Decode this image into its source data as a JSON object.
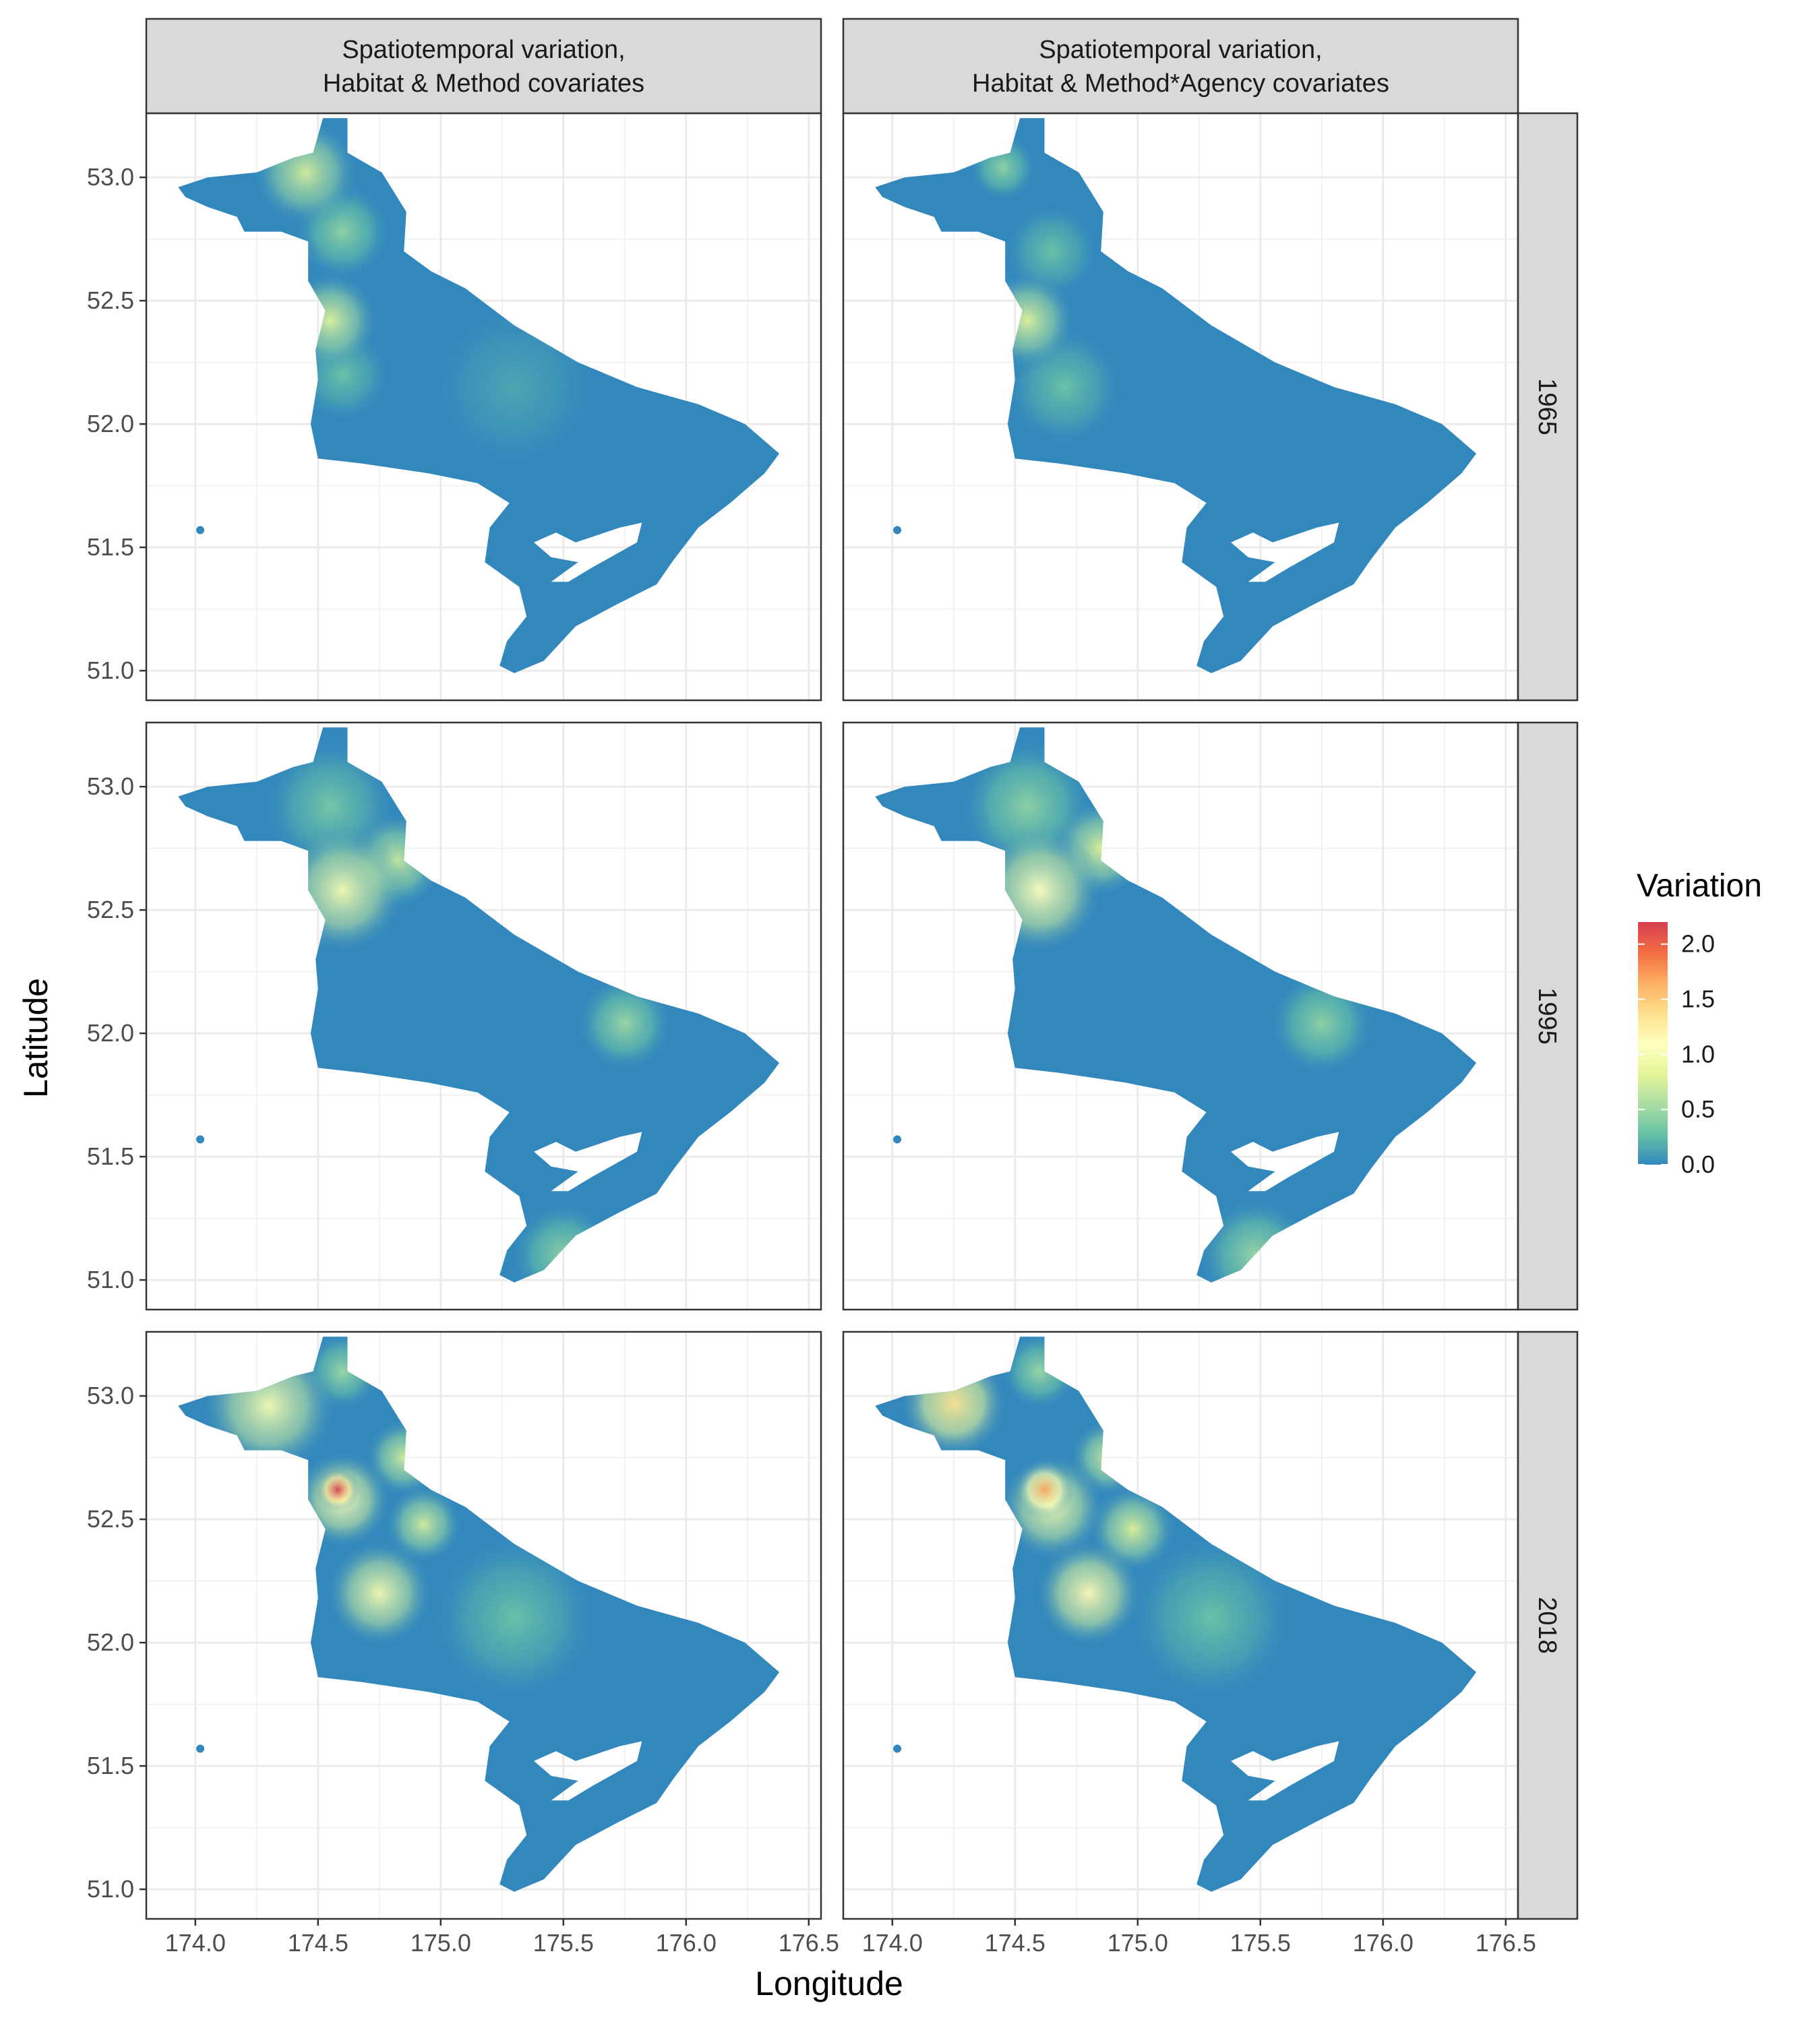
{
  "chart_data": {
    "type": "heatmap",
    "description_kind": "faceted spatial point map",
    "columns": [
      {
        "label_line1": "Spatiotemporal variation,",
        "label_line2": "Habitat & Method covariates"
      },
      {
        "label_line1": "Spatiotemporal variation,",
        "label_line2": "Habitat & Method*Agency covariates"
      }
    ],
    "rows": [
      "1965",
      "1995",
      "2018"
    ],
    "xlabel": "Longitude",
    "ylabel": "Latitude",
    "xlim": [
      173.8,
      176.55
    ],
    "ylim": [
      50.88,
      53.26
    ],
    "x_ticks": [
      174.0,
      174.5,
      175.0,
      175.5,
      176.0,
      176.5
    ],
    "x_tick_labels": [
      "174.0",
      "174.5",
      "175.0",
      "175.5",
      "176.0",
      "176.5"
    ],
    "y_ticks": [
      51.0,
      51.5,
      52.0,
      52.5,
      53.0
    ],
    "y_tick_labels": [
      "51.0",
      "51.5",
      "52.0",
      "52.5",
      "53.0"
    ],
    "grid": true,
    "legend": {
      "title": "Variation",
      "placement": "right",
      "range": [
        0,
        2.2
      ],
      "ticks": [
        0.0,
        0.5,
        1.0,
        1.5,
        2.0
      ],
      "tick_labels": [
        "0.0",
        "0.5",
        "1.0",
        "1.5",
        "2.0"
      ],
      "colors": [
        "#3288bd",
        "#66c2a5",
        "#abdda4",
        "#e6f598",
        "#ffffbf",
        "#fee08b",
        "#fdae61",
        "#f46d43",
        "#d53e4f"
      ]
    },
    "region_outline": [
      [
        173.93,
        52.96
      ],
      [
        174.05,
        53.0
      ],
      [
        174.25,
        53.02
      ],
      [
        174.4,
        53.08
      ],
      [
        174.48,
        53.1
      ],
      [
        174.52,
        53.24
      ],
      [
        174.62,
        53.24
      ],
      [
        174.62,
        53.1
      ],
      [
        174.76,
        53.02
      ],
      [
        174.86,
        52.86
      ],
      [
        174.85,
        52.7
      ],
      [
        174.96,
        52.62
      ],
      [
        175.1,
        52.55
      ],
      [
        175.3,
        52.4
      ],
      [
        175.56,
        52.25
      ],
      [
        175.8,
        52.15
      ],
      [
        176.05,
        52.08
      ],
      [
        176.24,
        52.0
      ],
      [
        176.38,
        51.88
      ],
      [
        176.32,
        51.8
      ],
      [
        176.18,
        51.68
      ],
      [
        176.05,
        51.58
      ],
      [
        175.95,
        51.45
      ],
      [
        175.88,
        51.35
      ],
      [
        175.72,
        51.27
      ],
      [
        175.55,
        51.18
      ],
      [
        175.42,
        51.04
      ],
      [
        175.3,
        50.99
      ],
      [
        175.24,
        51.02
      ],
      [
        175.27,
        51.12
      ],
      [
        175.35,
        51.22
      ],
      [
        175.32,
        51.34
      ],
      [
        175.18,
        51.44
      ],
      [
        175.2,
        51.58
      ],
      [
        175.28,
        51.68
      ],
      [
        175.15,
        51.76
      ],
      [
        174.95,
        51.8
      ],
      [
        174.68,
        51.84
      ],
      [
        174.5,
        51.86
      ],
      [
        174.47,
        52.0
      ],
      [
        174.5,
        52.18
      ],
      [
        174.49,
        52.3
      ],
      [
        174.53,
        52.46
      ],
      [
        174.46,
        52.58
      ],
      [
        174.46,
        52.74
      ],
      [
        174.35,
        52.78
      ],
      [
        174.2,
        52.78
      ],
      [
        174.17,
        52.84
      ],
      [
        174.05,
        52.88
      ],
      [
        173.96,
        52.92
      ]
    ],
    "hole_outline": [
      [
        175.47,
        51.56
      ],
      [
        175.55,
        51.52
      ],
      [
        175.73,
        51.58
      ],
      [
        175.82,
        51.6
      ],
      [
        175.8,
        51.52
      ],
      [
        175.62,
        51.42
      ],
      [
        175.52,
        51.36
      ],
      [
        175.45,
        51.36
      ],
      [
        175.56,
        51.44
      ],
      [
        175.45,
        51.46
      ],
      [
        175.38,
        51.52
      ]
    ],
    "isolated_point": [
      174.02,
      51.57
    ],
    "panels": [
      {
        "row": "1965",
        "col": 0,
        "hotspots": [
          {
            "lon": 174.45,
            "lat": 53.02,
            "value": 0.75,
            "spread": 0.22
          },
          {
            "lon": 174.6,
            "lat": 52.78,
            "value": 0.45,
            "spread": 0.2
          },
          {
            "lon": 174.55,
            "lat": 52.42,
            "value": 0.8,
            "spread": 0.2
          },
          {
            "lon": 174.6,
            "lat": 52.2,
            "value": 0.3,
            "spread": 0.2
          },
          {
            "lon": 175.3,
            "lat": 52.15,
            "value": 0.15,
            "spread": 0.35
          }
        ]
      },
      {
        "row": "1965",
        "col": 1,
        "hotspots": [
          {
            "lon": 174.45,
            "lat": 53.04,
            "value": 0.45,
            "spread": 0.14
          },
          {
            "lon": 174.65,
            "lat": 52.7,
            "value": 0.3,
            "spread": 0.2
          },
          {
            "lon": 174.55,
            "lat": 52.42,
            "value": 0.8,
            "spread": 0.2
          },
          {
            "lon": 174.7,
            "lat": 52.15,
            "value": 0.3,
            "spread": 0.25
          }
        ]
      },
      {
        "row": "1995",
        "col": 0,
        "hotspots": [
          {
            "lon": 174.6,
            "lat": 52.58,
            "value": 1.0,
            "spread": 0.26
          },
          {
            "lon": 174.82,
            "lat": 52.7,
            "value": 0.7,
            "spread": 0.2
          },
          {
            "lon": 174.55,
            "lat": 52.92,
            "value": 0.35,
            "spread": 0.28
          },
          {
            "lon": 175.75,
            "lat": 52.04,
            "value": 0.5,
            "spread": 0.2
          },
          {
            "lon": 175.5,
            "lat": 51.1,
            "value": 0.45,
            "spread": 0.22
          }
        ]
      },
      {
        "row": "1995",
        "col": 1,
        "hotspots": [
          {
            "lon": 174.6,
            "lat": 52.58,
            "value": 1.1,
            "spread": 0.26
          },
          {
            "lon": 174.85,
            "lat": 52.75,
            "value": 0.8,
            "spread": 0.2
          },
          {
            "lon": 174.55,
            "lat": 52.92,
            "value": 0.45,
            "spread": 0.28
          },
          {
            "lon": 175.75,
            "lat": 52.04,
            "value": 0.45,
            "spread": 0.22
          },
          {
            "lon": 175.48,
            "lat": 51.1,
            "value": 0.5,
            "spread": 0.24
          }
        ]
      },
      {
        "row": "2018",
        "col": 0,
        "hotspots": [
          {
            "lon": 174.3,
            "lat": 52.96,
            "value": 1.0,
            "spread": 0.28
          },
          {
            "lon": 174.58,
            "lat": 52.62,
            "value": 2.2,
            "spread": 0.09
          },
          {
            "lon": 174.6,
            "lat": 52.58,
            "value": 1.1,
            "spread": 0.2
          },
          {
            "lon": 174.85,
            "lat": 52.75,
            "value": 0.75,
            "spread": 0.16
          },
          {
            "lon": 174.93,
            "lat": 52.48,
            "value": 0.75,
            "spread": 0.16
          },
          {
            "lon": 174.75,
            "lat": 52.2,
            "value": 1.0,
            "spread": 0.22
          },
          {
            "lon": 174.6,
            "lat": 53.1,
            "value": 0.5,
            "spread": 0.16
          },
          {
            "lon": 175.3,
            "lat": 52.1,
            "value": 0.3,
            "spread": 0.35
          }
        ]
      },
      {
        "row": "2018",
        "col": 1,
        "hotspots": [
          {
            "lon": 174.25,
            "lat": 52.97,
            "value": 1.35,
            "spread": 0.22
          },
          {
            "lon": 174.62,
            "lat": 52.62,
            "value": 1.7,
            "spread": 0.12
          },
          {
            "lon": 174.65,
            "lat": 52.55,
            "value": 1.0,
            "spread": 0.22
          },
          {
            "lon": 174.88,
            "lat": 52.75,
            "value": 0.75,
            "spread": 0.16
          },
          {
            "lon": 174.98,
            "lat": 52.46,
            "value": 0.8,
            "spread": 0.18
          },
          {
            "lon": 174.8,
            "lat": 52.2,
            "value": 1.15,
            "spread": 0.22
          },
          {
            "lon": 174.6,
            "lat": 53.1,
            "value": 0.5,
            "spread": 0.16
          },
          {
            "lon": 175.3,
            "lat": 52.1,
            "value": 0.3,
            "spread": 0.35
          }
        ]
      }
    ]
  }
}
